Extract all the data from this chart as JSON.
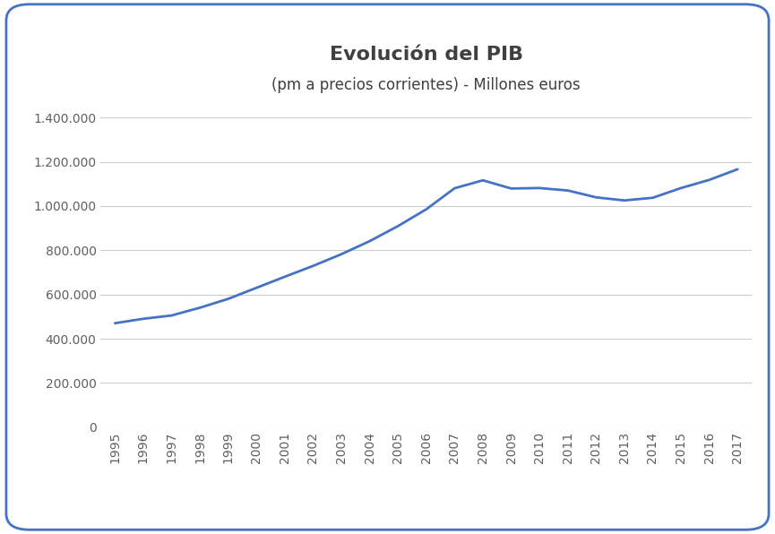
{
  "title": "Evolución del PIB",
  "subtitle": "(pm a precios corrientes) - Millones euros",
  "years": [
    1995,
    1996,
    1997,
    1998,
    1999,
    2000,
    2001,
    2002,
    2003,
    2004,
    2005,
    2006,
    2007,
    2008,
    2009,
    2010,
    2011,
    2012,
    2013,
    2014,
    2015,
    2016,
    2017
  ],
  "values": [
    470000,
    490000,
    505000,
    540000,
    580000,
    630000,
    680000,
    729000,
    782000,
    841000,
    909000,
    985000,
    1080000,
    1116000,
    1079000,
    1081000,
    1070000,
    1039000,
    1025000,
    1037000,
    1081000,
    1118000,
    1166000
  ],
  "line_color": "#4472C4",
  "line_width": 2.0,
  "bg_color": "#FFFFFF",
  "border_color": "#4472C4",
  "grid_color": "#CCCCCC",
  "ylim": [
    0,
    1400000
  ],
  "ytick_step": 200000,
  "title_fontsize": 16,
  "subtitle_fontsize": 12,
  "tick_fontsize": 10,
  "title_color": "#404040",
  "tick_color": "#606060"
}
